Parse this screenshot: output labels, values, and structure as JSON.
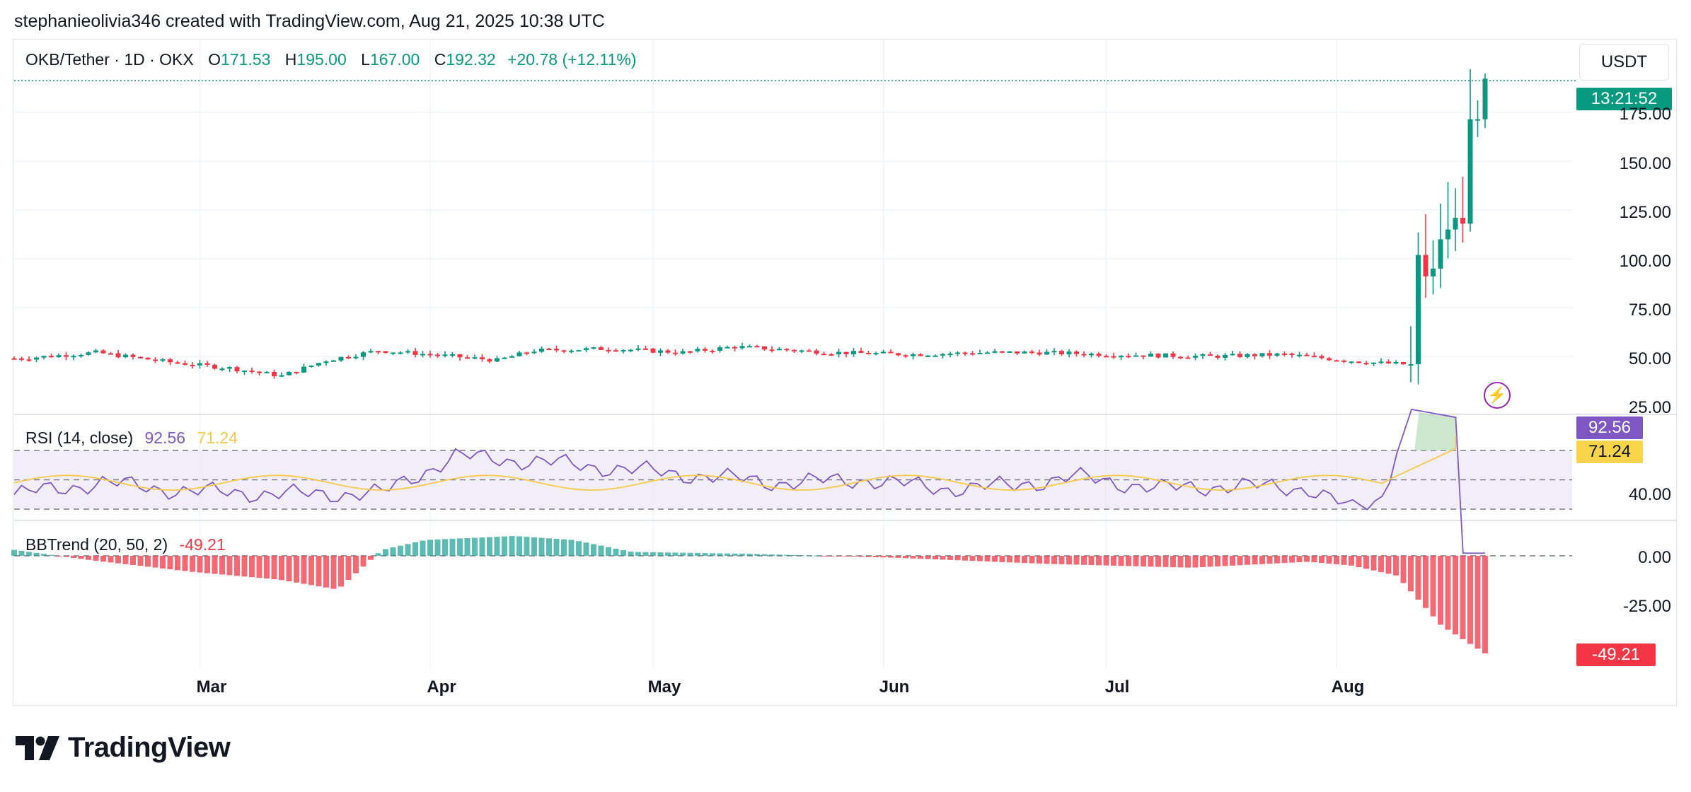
{
  "header": {
    "credit": "stephanieolivia346 created with TradingView.com, Aug 21, 2025 10:38 UTC"
  },
  "legend": {
    "symbol": "OKB/Tether · 1D · OKX",
    "o_label": "O",
    "o_val": "171.53",
    "h_label": "H",
    "h_val": "195.00",
    "l_label": "L",
    "l_val": "167.00",
    "c_label": "C",
    "c_val": "192.32",
    "change": "+20.78 (+12.11%)"
  },
  "currency": "USDT",
  "countdown": "13:21:52",
  "price_axis": [
    "175.00",
    "150.00",
    "125.00",
    "100.00",
    "75.00",
    "50.00",
    "25.00"
  ],
  "rsi": {
    "title": "RSI (14, close)",
    "value": "92.56",
    "ma_value": "71.24",
    "axis_label": "40.00"
  },
  "bbtrend": {
    "title": "BBTrend (20, 50, 2)",
    "value": "-49.21",
    "axis": [
      "0.00",
      "-25.00"
    ]
  },
  "months": [
    "Mar",
    "Apr",
    "May",
    "Jun",
    "Jul",
    "Aug"
  ],
  "brand": {
    "name": "TradingView"
  },
  "colors": {
    "up": "#089981",
    "down": "#f23645",
    "rsi": "#7e57c2",
    "rsi_ma": "#f7c948",
    "bb_up": "#26a69a",
    "bb_down": "#f23645"
  },
  "chart_data": [
    {
      "type": "candlestick",
      "symbol": "OKB/Tether",
      "interval": "1D",
      "x_range": [
        "2025-02-04",
        "2025-08-21"
      ],
      "ylim": [
        25,
        200
      ],
      "last_ohlc": {
        "open": 171.53,
        "high": 195.0,
        "low": 167.0,
        "close": 192.32
      },
      "close_series": [
        {
          "date": "2025-02-05",
          "close": 49
        },
        {
          "date": "2025-02-15",
          "close": 52
        },
        {
          "date": "2025-02-25",
          "close": 47
        },
        {
          "date": "2025-03-05",
          "close": 44
        },
        {
          "date": "2025-03-12",
          "close": 40
        },
        {
          "date": "2025-03-18",
          "close": 48
        },
        {
          "date": "2025-03-25",
          "close": 53
        },
        {
          "date": "2025-04-01",
          "close": 51
        },
        {
          "date": "2025-04-10",
          "close": 48
        },
        {
          "date": "2025-04-15",
          "close": 53
        },
        {
          "date": "2025-04-25",
          "close": 54
        },
        {
          "date": "2025-05-05",
          "close": 52
        },
        {
          "date": "2025-05-12",
          "close": 55
        },
        {
          "date": "2025-05-25",
          "close": 52
        },
        {
          "date": "2025-06-05",
          "close": 51
        },
        {
          "date": "2025-06-15",
          "close": 52
        },
        {
          "date": "2025-06-22",
          "close": 52
        },
        {
          "date": "2025-07-01",
          "close": 51
        },
        {
          "date": "2025-07-15",
          "close": 50
        },
        {
          "date": "2025-07-25",
          "close": 51
        },
        {
          "date": "2025-08-05",
          "close": 47
        },
        {
          "date": "2025-08-10",
          "close": 46
        },
        {
          "date": "2025-08-11",
          "close": 46
        },
        {
          "date": "2025-08-12",
          "close": 102
        },
        {
          "date": "2025-08-13",
          "close": 91
        },
        {
          "date": "2025-08-14",
          "close": 95
        },
        {
          "date": "2025-08-15",
          "close": 110
        },
        {
          "date": "2025-08-16",
          "close": 115
        },
        {
          "date": "2025-08-17",
          "close": 121
        },
        {
          "date": "2025-08-18",
          "close": 118
        },
        {
          "date": "2025-08-19",
          "close": 171.53
        },
        {
          "date": "2025-08-20",
          "close": 171.53
        },
        {
          "date": "2025-08-21",
          "close": 192.32
        }
      ]
    },
    {
      "type": "line",
      "name": "RSI (14, close)",
      "ylim": [
        25,
        100
      ],
      "levels": [
        70,
        50,
        30
      ],
      "last": 92.56,
      "ma_last": 71.24,
      "points": [
        [
          0,
          40
        ],
        [
          0.06,
          48
        ],
        [
          0.12,
          42
        ],
        [
          0.2,
          40
        ],
        [
          0.25,
          41
        ],
        [
          0.3,
          66
        ],
        [
          0.36,
          62
        ],
        [
          0.44,
          55
        ],
        [
          0.52,
          48
        ],
        [
          0.58,
          50
        ],
        [
          0.63,
          44
        ],
        [
          0.68,
          46
        ],
        [
          0.72,
          52
        ],
        [
          0.78,
          44
        ],
        [
          0.83,
          46
        ],
        [
          0.88,
          44
        ],
        [
          0.91,
          30
        ],
        [
          0.93,
          38
        ],
        [
          0.95,
          98
        ],
        [
          0.98,
          92.56
        ]
      ]
    },
    {
      "type": "bar",
      "name": "BBTrend (20, 50, 2)",
      "ylim": [
        -50,
        10
      ],
      "last": -49.21,
      "shape": [
        [
          0,
          3
        ],
        [
          0.05,
          -2
        ],
        [
          0.12,
          -8
        ],
        [
          0.18,
          -12
        ],
        [
          0.22,
          -17
        ],
        [
          0.25,
          3
        ],
        [
          0.28,
          8
        ],
        [
          0.34,
          10
        ],
        [
          0.38,
          8
        ],
        [
          0.42,
          2
        ],
        [
          0.5,
          1
        ],
        [
          0.6,
          -1
        ],
        [
          0.7,
          -4
        ],
        [
          0.8,
          -6
        ],
        [
          0.88,
          -3
        ],
        [
          0.91,
          -5
        ],
        [
          0.94,
          -10
        ],
        [
          0.97,
          -35
        ],
        [
          1,
          -49.21
        ]
      ]
    }
  ]
}
